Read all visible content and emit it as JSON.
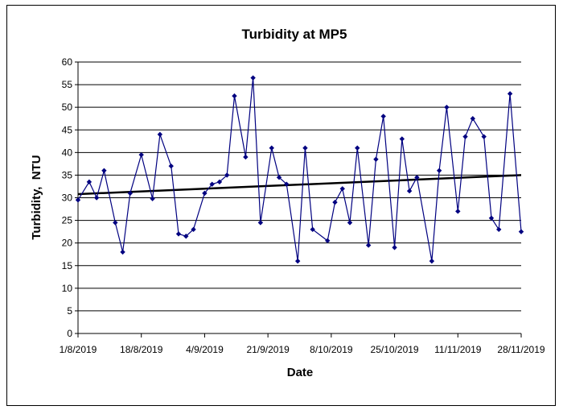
{
  "chart_data": {
    "type": "line",
    "title": "Turbidity at MP5",
    "xlabel": "Date",
    "ylabel": "Turbidity,  NTU",
    "ylim": [
      0,
      60
    ],
    "yticks": [
      0,
      5,
      10,
      15,
      20,
      25,
      30,
      35,
      40,
      45,
      50,
      55,
      60
    ],
    "xlim": [
      "2019-08-01",
      "2019-11-28"
    ],
    "xtick_labels": [
      "1/8/2019",
      "18/8/2019",
      "4/9/2019",
      "21/9/2019",
      "8/10/2019",
      "25/10/2019",
      "11/11/2019",
      "28/11/2019"
    ],
    "xtick_dates": [
      "2019-08-01",
      "2019-08-18",
      "2019-09-04",
      "2019-09-21",
      "2019-10-08",
      "2019-10-25",
      "2019-11-11",
      "2019-11-28"
    ],
    "grid": "horizontal",
    "legend": "none",
    "series": [
      {
        "color": "#000080",
        "marker": "diamond",
        "points": [
          [
            "2019-08-01",
            29.5
          ],
          [
            "2019-08-04",
            33.5
          ],
          [
            "2019-08-06",
            30.0
          ],
          [
            "2019-08-08",
            36.0
          ],
          [
            "2019-08-11",
            24.5
          ],
          [
            "2019-08-13",
            18.0
          ],
          [
            "2019-08-15",
            31.0
          ],
          [
            "2019-08-18",
            39.5
          ],
          [
            "2019-08-21",
            29.8
          ],
          [
            "2019-08-23",
            44.0
          ],
          [
            "2019-08-26",
            37.0
          ],
          [
            "2019-08-28",
            22.0
          ],
          [
            "2019-08-30",
            21.5
          ],
          [
            "2019-09-01",
            23.0
          ],
          [
            "2019-09-04",
            31.0
          ],
          [
            "2019-09-06",
            33.0
          ],
          [
            "2019-09-08",
            33.5
          ],
          [
            "2019-09-10",
            35.0
          ],
          [
            "2019-09-12",
            52.5
          ],
          [
            "2019-09-15",
            39.0
          ],
          [
            "2019-09-17",
            56.5
          ],
          [
            "2019-09-19",
            24.5
          ],
          [
            "2019-09-22",
            41.0
          ],
          [
            "2019-09-24",
            34.5
          ],
          [
            "2019-09-26",
            33.0
          ],
          [
            "2019-09-29",
            16.0
          ],
          [
            "2019-10-01",
            41.0
          ],
          [
            "2019-10-03",
            23.0
          ],
          [
            "2019-10-07",
            20.5
          ],
          [
            "2019-10-09",
            29.0
          ],
          [
            "2019-10-11",
            32.0
          ],
          [
            "2019-10-13",
            24.5
          ],
          [
            "2019-10-15",
            41.0
          ],
          [
            "2019-10-18",
            19.5
          ],
          [
            "2019-10-20",
            38.5
          ],
          [
            "2019-10-22",
            48.0
          ],
          [
            "2019-10-25",
            19.0
          ],
          [
            "2019-10-27",
            43.0
          ],
          [
            "2019-10-29",
            31.5
          ],
          [
            "2019-10-31",
            34.5
          ],
          [
            "2019-11-04",
            16.0
          ],
          [
            "2019-11-06",
            36.0
          ],
          [
            "2019-11-08",
            50.0
          ],
          [
            "2019-11-11",
            27.0
          ],
          [
            "2019-11-13",
            43.5
          ],
          [
            "2019-11-15",
            47.5
          ],
          [
            "2019-11-18",
            43.5
          ],
          [
            "2019-11-20",
            25.5
          ],
          [
            "2019-11-22",
            23.0
          ],
          [
            "2019-11-25",
            53.0
          ],
          [
            "2019-11-28",
            22.5
          ]
        ]
      }
    ],
    "trendline": {
      "color": "#000000",
      "from": [
        "2019-08-01",
        30.8
      ],
      "to": [
        "2019-11-28",
        35.0
      ]
    }
  }
}
